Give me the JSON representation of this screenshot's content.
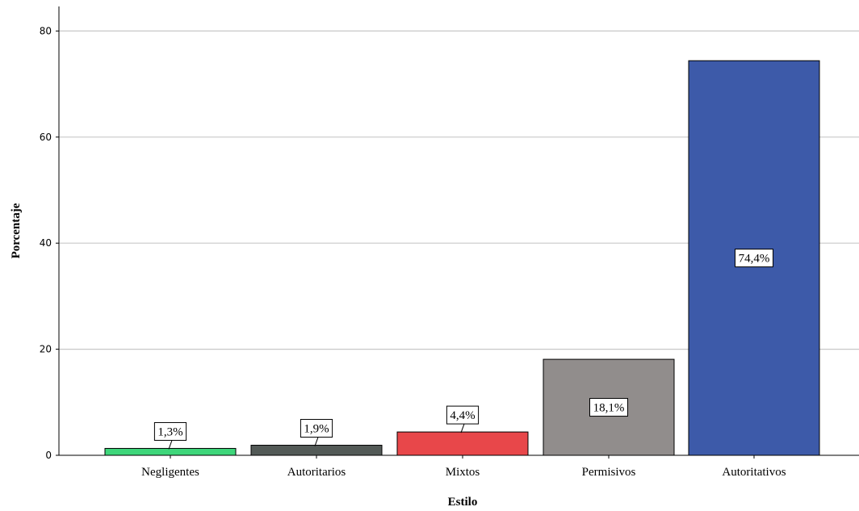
{
  "chart_data": {
    "type": "bar",
    "categories": [
      "Negligentes",
      "Autoritarios",
      "Mixtos",
      "Permisivos",
      "Autoritativos"
    ],
    "values": [
      1.3,
      1.9,
      4.4,
      18.1,
      74.4
    ],
    "data_labels": [
      "1,3%",
      "1,9%",
      "4,4%",
      "18,1%",
      "74,4%"
    ],
    "colors": [
      "#3ed67a",
      "#535a57",
      "#e8474a",
      "#918d8c",
      "#3d5aa9"
    ],
    "xlabel": "Estilo",
    "ylabel": "Porcentaje",
    "ylim": [
      0,
      85
    ],
    "yticks": [
      0,
      20,
      40,
      60,
      80
    ],
    "grid": true
  }
}
